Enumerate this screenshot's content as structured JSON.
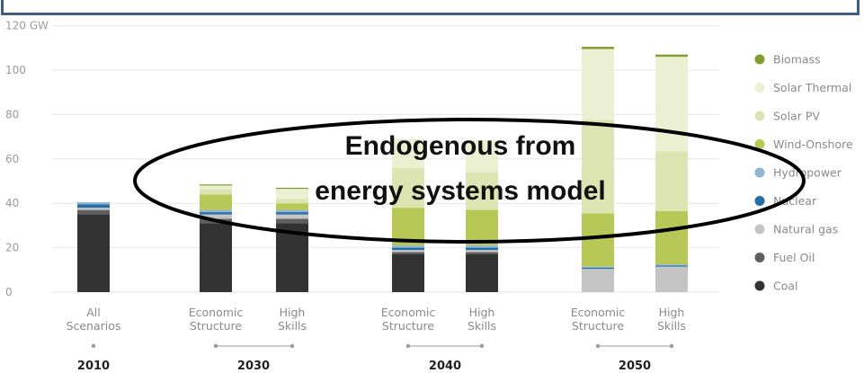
{
  "chart_data": {
    "type": "bar",
    "stacked": true,
    "ylabel": "",
    "yunit": "GW",
    "ylim": [
      0,
      120
    ],
    "yticks": [
      0,
      20,
      40,
      60,
      80,
      100,
      120
    ],
    "grid": true,
    "legend_position": "right",
    "groups": [
      {
        "year": "2010",
        "categories": [
          "All\nScenarios"
        ]
      },
      {
        "year": "2030",
        "categories": [
          "Economic\nStructure",
          "High\nSkills"
        ]
      },
      {
        "year": "2040",
        "categories": [
          "Economic\nStructure",
          "High\nSkills"
        ]
      },
      {
        "year": "2050",
        "categories": [
          "Economic\nStructure",
          "High\nSkills"
        ]
      }
    ],
    "series": [
      {
        "name": "Coal",
        "color": "#333333",
        "values": [
          35,
          31,
          31,
          17,
          17,
          0,
          0
        ]
      },
      {
        "name": "Fuel Oil",
        "color": "#5f5f5f",
        "values": [
          2,
          2,
          2,
          1,
          1,
          0,
          0
        ]
      },
      {
        "name": "Natural gas",
        "color": "#c4c4c4",
        "values": [
          1,
          2,
          2,
          1,
          1,
          10.5,
          11.5
        ]
      },
      {
        "name": "Nuclear",
        "color": "#236da8",
        "values": [
          1.5,
          1,
          1,
          1,
          1,
          0.5,
          0.5
        ]
      },
      {
        "name": "Hydropower",
        "color": "#8fb4d6",
        "values": [
          1,
          1,
          1,
          1,
          1,
          0.5,
          0.5
        ]
      },
      {
        "name": "Wind-Onshore",
        "color": "#b8c857",
        "values": [
          0,
          7,
          3,
          17,
          16,
          24,
          24
        ]
      },
      {
        "name": "Solar PV",
        "color": "#dce5b2",
        "values": [
          0,
          2.5,
          2,
          18,
          17,
          42,
          27
        ]
      },
      {
        "name": "Solar Thermal",
        "color": "#ecf0d2",
        "values": [
          0,
          1.5,
          4.5,
          13,
          14.5,
          32,
          42.5
        ]
      },
      {
        "name": "Biomass",
        "color": "#7f9e2f",
        "values": [
          0,
          0.5,
          0.5,
          0,
          0,
          1,
          1
        ]
      }
    ],
    "legend_order": [
      "Biomass",
      "Solar Thermal",
      "Solar PV",
      "Wind-Onshore",
      "Hydropower",
      "Nuclear",
      "Natural gas",
      "Fuel Oil",
      "Coal"
    ],
    "annotation": {
      "lines": [
        "Endogenous from",
        "energy systems model"
      ]
    }
  }
}
